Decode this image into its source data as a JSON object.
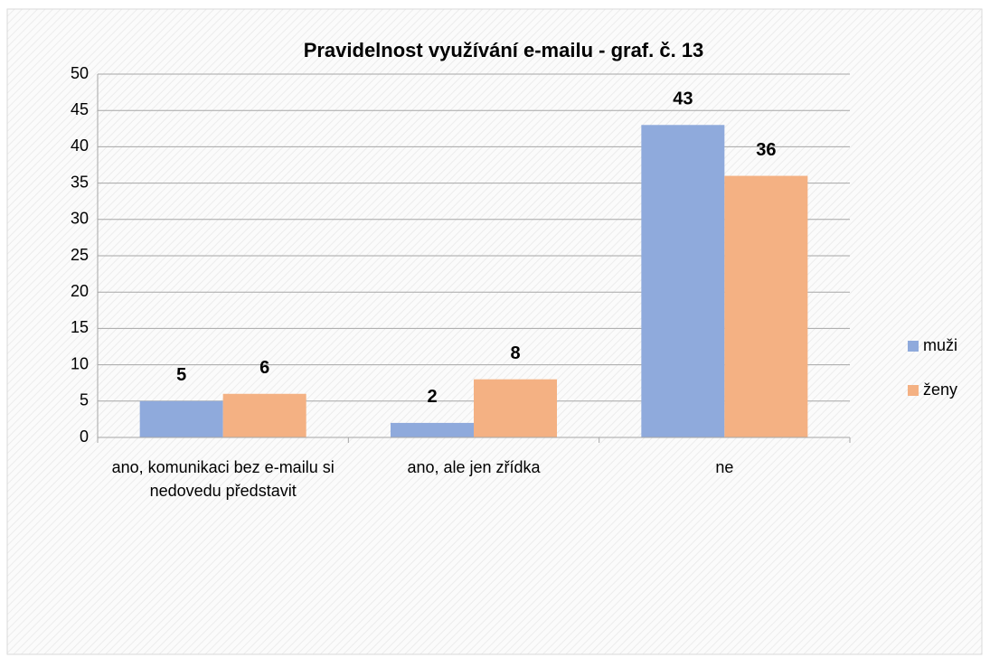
{
  "chart_data": {
    "type": "bar",
    "title": "Pravidelnost využívání e-mailu - graf. č. 13",
    "categories": [
      "ano, komunikaci bez e-mailu si nedovedu představit",
      "ano, ale jen zřídka",
      "ne"
    ],
    "series": [
      {
        "name": "muži",
        "color": "#8faadc",
        "values": [
          5,
          2,
          43
        ]
      },
      {
        "name": "ženy",
        "color": "#f4b183",
        "values": [
          6,
          8,
          36
        ]
      }
    ],
    "ylim": [
      0,
      50
    ],
    "yticks": [
      0,
      5,
      10,
      15,
      20,
      25,
      30,
      35,
      40,
      45,
      50
    ],
    "grid": true,
    "legend": "right"
  }
}
